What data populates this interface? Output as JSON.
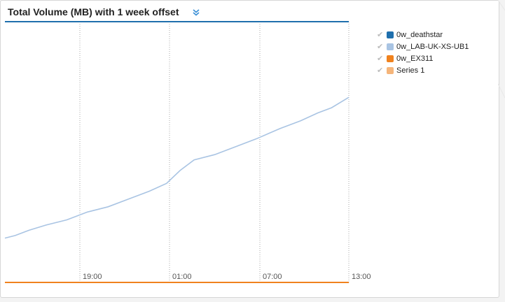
{
  "panel": {
    "title": "Total Volume (MB) with 1 week offset",
    "toggle_icon": "double-chevron-down-icon"
  },
  "colors": {
    "accent_blue": "#1f6fad",
    "light_blue": "#a9c4e3",
    "orange": "#f0821e",
    "light_orange": "#f5b57a",
    "grid": "#aaaaaa"
  },
  "legend": [
    {
      "label": "0w_deathstar",
      "color": "#1f6fad",
      "checked": true
    },
    {
      "label": "0w_LAB-UK-XS-UB1",
      "color": "#a9c4e3",
      "checked": true
    },
    {
      "label": "0w_EX311",
      "color": "#f0821e",
      "checked": true
    },
    {
      "label": "Series 1",
      "color": "#f5b57a",
      "checked": true
    }
  ],
  "chart_data": {
    "type": "line",
    "x_ticks": [
      "19:00",
      "01:00",
      "07:00",
      "13:00"
    ],
    "grid": "vertical-dotted",
    "legend_position": "right",
    "series": [
      {
        "name": "0w_deathstar",
        "color": "#1f6fad",
        "x": [
          0,
          1
        ],
        "values": [
          1,
          1
        ]
      },
      {
        "name": "0w_LAB-UK-XS-UB1",
        "color": "#a9c4e3",
        "x": [
          0,
          0.03,
          0.07,
          0.12,
          0.18,
          0.24,
          0.3,
          0.36,
          0.42,
          0.47,
          0.51,
          0.55,
          0.61,
          0.67,
          0.73,
          0.8,
          0.86,
          0.91,
          0.95,
          1.0
        ],
        "values": [
          0.17,
          0.18,
          0.2,
          0.22,
          0.24,
          0.27,
          0.29,
          0.32,
          0.35,
          0.38,
          0.43,
          0.47,
          0.49,
          0.52,
          0.55,
          0.59,
          0.62,
          0.65,
          0.67,
          0.71
        ]
      },
      {
        "name": "0w_EX311",
        "color": "#f0821e",
        "x": [
          0,
          1
        ],
        "values": [
          0,
          0
        ]
      }
    ]
  }
}
